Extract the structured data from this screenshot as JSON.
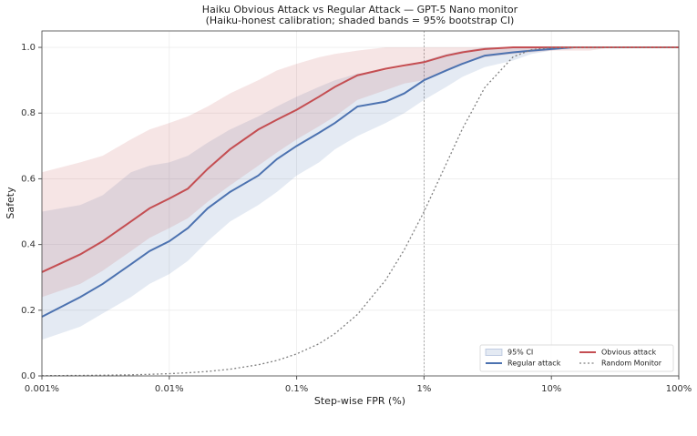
{
  "chart_data": {
    "type": "line",
    "title": "Haiku Obvious Attack vs Regular Attack — GPT-5 Nano monitor",
    "subtitle": "(Haiku-honest calibration; shaded bands = 95% bootstrap CI)",
    "x_label": "Step-wise FPR (%)",
    "y_label": "Safety",
    "log_x": true,
    "grid": true,
    "legend": "lower right",
    "ci_label": "95% CI",
    "ci_color": "#4c72b0",
    "vline": 1,
    "xlim": [
      0.001,
      100
    ],
    "ylim": [
      0,
      1.05
    ],
    "xticks": [
      {
        "value": 0.001,
        "label": "0.001%"
      },
      {
        "value": 0.01,
        "label": "0.01%"
      },
      {
        "value": 0.1,
        "label": "0.1%"
      },
      {
        "value": 1,
        "label": "1%"
      },
      {
        "value": 10,
        "label": "10%"
      },
      {
        "value": 100,
        "label": "100%"
      }
    ],
    "yticks": [
      {
        "value": 0,
        "label": "0.0"
      },
      {
        "value": 0.2,
        "label": "0.2"
      },
      {
        "value": 0.4,
        "label": "0.4"
      },
      {
        "value": 0.6,
        "label": "0.6"
      },
      {
        "value": 0.8,
        "label": "0.8"
      },
      {
        "value": 1,
        "label": "1.0"
      }
    ],
    "x": [
      0.001,
      0.002,
      0.003,
      0.005,
      0.007,
      0.01,
      0.014,
      0.02,
      0.03,
      0.05,
      0.07,
      0.1,
      0.15,
      0.2,
      0.3,
      0.5,
      0.7,
      1,
      1.5,
      2,
      3,
      5,
      7,
      10,
      15,
      20,
      30,
      50,
      100
    ],
    "series": [
      {
        "name": "Regular attack",
        "color": "#4c72b0",
        "style": "solid",
        "values": [
          0.18,
          0.24,
          0.28,
          0.34,
          0.38,
          0.41,
          0.45,
          0.51,
          0.56,
          0.61,
          0.66,
          0.7,
          0.74,
          0.77,
          0.82,
          0.835,
          0.86,
          0.9,
          0.93,
          0.95,
          0.975,
          0.985,
          0.99,
          0.995,
          1,
          1,
          1,
          1,
          1
        ],
        "ci": {
          "lower": [
            0.11,
            0.15,
            0.19,
            0.24,
            0.28,
            0.31,
            0.35,
            0.41,
            0.47,
            0.52,
            0.56,
            0.61,
            0.65,
            0.69,
            0.73,
            0.77,
            0.8,
            0.84,
            0.88,
            0.91,
            0.94,
            0.96,
            0.98,
            0.99,
            1,
            1,
            1,
            1,
            1
          ],
          "upper": [
            0.5,
            0.52,
            0.55,
            0.62,
            0.64,
            0.65,
            0.67,
            0.71,
            0.75,
            0.79,
            0.82,
            0.85,
            0.88,
            0.9,
            0.92,
            0.93,
            0.94,
            0.96,
            0.98,
            0.99,
            1,
            1,
            1,
            1,
            1,
            1,
            1,
            1,
            1
          ]
        }
      },
      {
        "name": "Obvious attack",
        "color": "#c44e52",
        "style": "solid",
        "values": [
          0.316,
          0.37,
          0.41,
          0.47,
          0.51,
          0.54,
          0.57,
          0.63,
          0.69,
          0.75,
          0.78,
          0.81,
          0.85,
          0.88,
          0.915,
          0.935,
          0.945,
          0.955,
          0.975,
          0.985,
          0.995,
          1,
          1,
          1,
          1,
          1,
          1,
          1,
          1
        ],
        "ci": {
          "lower": [
            0.24,
            0.28,
            0.32,
            0.38,
            0.42,
            0.45,
            0.48,
            0.53,
            0.58,
            0.64,
            0.68,
            0.72,
            0.76,
            0.79,
            0.84,
            0.87,
            0.89,
            0.9,
            0.93,
            0.95,
            0.97,
            0.98,
            0.985,
            0.99,
            0.99,
            0.99,
            1,
            1,
            1
          ],
          "upper": [
            0.62,
            0.65,
            0.67,
            0.72,
            0.75,
            0.77,
            0.79,
            0.82,
            0.86,
            0.9,
            0.93,
            0.95,
            0.97,
            0.98,
            0.99,
            1,
            1,
            1,
            1,
            1,
            1,
            1,
            1,
            1,
            1,
            1,
            1,
            1,
            1
          ]
        }
      },
      {
        "name": "Random Monitor",
        "color": "#808080",
        "style": "dotted",
        "values": [
          0.0007,
          0.0014,
          0.0021,
          0.0034,
          0.0048,
          0.0069,
          0.0096,
          0.0137,
          0.0205,
          0.034,
          0.047,
          0.067,
          0.098,
          0.129,
          0.187,
          0.292,
          0.384,
          0.5,
          0.647,
          0.752,
          0.878,
          0.971,
          0.993,
          0.9993,
          1,
          1,
          1,
          1,
          1
        ]
      }
    ]
  }
}
